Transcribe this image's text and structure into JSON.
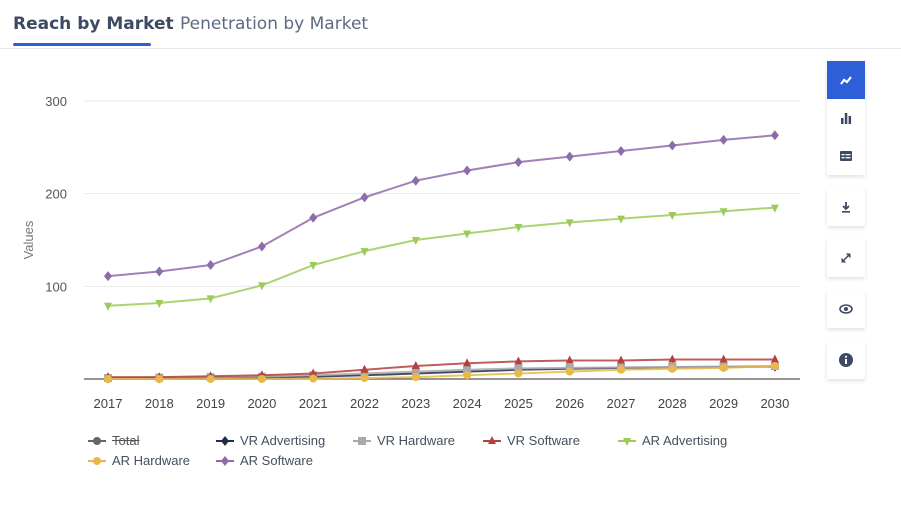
{
  "tabs": [
    {
      "label": "Reach by Market",
      "active": true
    },
    {
      "label": "Penetration by Market",
      "active": false
    }
  ],
  "toolbar": {
    "buttons": [
      {
        "icon": "line-chart-icon",
        "active": true
      },
      {
        "icon": "bar-chart-icon",
        "active": false
      },
      {
        "icon": "table-icon",
        "active": false
      },
      {
        "icon": "download-icon",
        "active": false
      },
      {
        "icon": "expand-icon",
        "active": false
      },
      {
        "icon": "eye-icon",
        "active": false
      },
      {
        "icon": "info-icon",
        "active": false
      }
    ]
  },
  "chart_data": {
    "type": "line",
    "title": "",
    "xlabel": "",
    "ylabel": "Values",
    "ylim": [
      0,
      300
    ],
    "yticks": [
      100,
      200,
      300
    ],
    "grid": true,
    "legend_position": "bottom",
    "x": [
      "2017",
      "2018",
      "2019",
      "2020",
      "2021",
      "2022",
      "2023",
      "2024",
      "2025",
      "2026",
      "2027",
      "2028",
      "2029",
      "2030"
    ],
    "series": [
      {
        "name": "Total",
        "color": "#666666",
        "marker": "circle",
        "hidden": true,
        "values": []
      },
      {
        "name": "VR Advertising",
        "color": "#1f2d4a",
        "marker": "diamond",
        "hidden": false,
        "values": [
          0.5,
          0.7,
          1,
          1.5,
          2.5,
          4,
          6,
          8,
          10,
          11,
          12,
          12.5,
          13,
          13.5
        ]
      },
      {
        "name": "VR Hardware",
        "color": "#a9a9a9",
        "marker": "square",
        "hidden": false,
        "values": [
          1,
          1.5,
          2,
          2.5,
          4,
          6,
          8,
          10,
          11.5,
          12,
          12.5,
          13,
          13.5,
          14
        ]
      },
      {
        "name": "VR Software",
        "color": "#b5403c",
        "marker": "triangle-up",
        "hidden": false,
        "values": [
          2,
          2,
          3,
          4,
          6,
          10,
          14,
          17,
          19,
          20,
          20,
          21,
          21,
          21
        ]
      },
      {
        "name": "AR Advertising",
        "color": "#9ccb5a",
        "marker": "triangle-down",
        "hidden": false,
        "values": [
          79,
          82,
          87,
          101,
          123,
          138,
          150,
          157,
          164,
          169,
          173,
          177,
          181,
          185
        ]
      },
      {
        "name": "AR Hardware",
        "color": "#e8b84a",
        "marker": "circle",
        "hidden": false,
        "values": [
          0,
          0,
          0,
          0,
          0.5,
          1,
          2,
          4,
          6,
          8,
          10,
          11,
          12,
          14
        ]
      },
      {
        "name": "AR Software",
        "color": "#8e6bab",
        "marker": "diamond",
        "hidden": false,
        "values": [
          111,
          116,
          123,
          143,
          174,
          196,
          214,
          225,
          234,
          240,
          246,
          252,
          258,
          263
        ]
      }
    ]
  }
}
